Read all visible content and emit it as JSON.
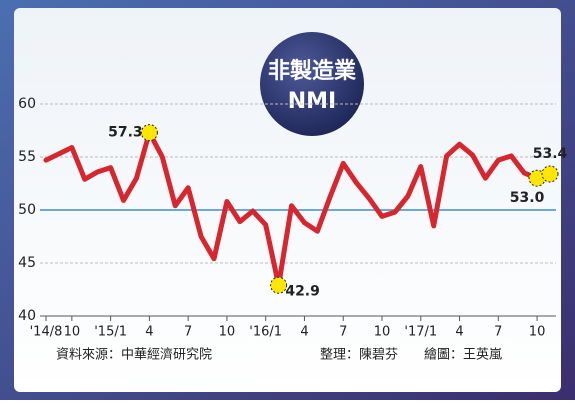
{
  "chart_data": {
    "type": "line",
    "title": "非製造業",
    "subtitle": "NMI",
    "categories": [
      "'14/8",
      null,
      "10",
      null,
      null,
      "'15/1",
      null,
      null,
      "4",
      null,
      null,
      "7",
      null,
      null,
      "10",
      null,
      null,
      "'16/1",
      null,
      null,
      "4",
      null,
      null,
      "7",
      null,
      null,
      "10",
      null,
      null,
      "'17/1",
      null,
      null,
      "4",
      null,
      null,
      "7",
      null,
      null,
      "10",
      null
    ],
    "series": [
      {
        "name": "NMI",
        "color": "#d7262e",
        "values": [
          54.7,
          55.3,
          55.9,
          52.9,
          53.6,
          54.0,
          50.9,
          53.0,
          57.3,
          55.0,
          50.4,
          52.1,
          47.5,
          45.4,
          50.8,
          48.9,
          49.9,
          48.6,
          42.9,
          50.4,
          48.8,
          48.0,
          51.3,
          54.4,
          52.6,
          51.1,
          49.4,
          49.8,
          51.3,
          54.1,
          48.5,
          55.1,
          56.2,
          55.2,
          53.0,
          54.7,
          55.1,
          53.5,
          53.0,
          53.4
        ],
        "value_labels": [
          null,
          null,
          null,
          null,
          null,
          null,
          null,
          null,
          "57.3",
          null,
          null,
          null,
          null,
          null,
          null,
          null,
          null,
          null,
          "42.9",
          null,
          null,
          null,
          null,
          null,
          null,
          null,
          null,
          null,
          null,
          null,
          null,
          null,
          null,
          null,
          null,
          null,
          null,
          null,
          "53.0",
          "53.4"
        ]
      }
    ],
    "ylim": [
      40,
      60
    ],
    "yticks": [
      40,
      45,
      50,
      55,
      60
    ],
    "reference_line": 50,
    "source": "資料來源：中華經濟研究院",
    "editor": "整理：陳碧芬",
    "graphics": "繪圖：王英嵐"
  }
}
